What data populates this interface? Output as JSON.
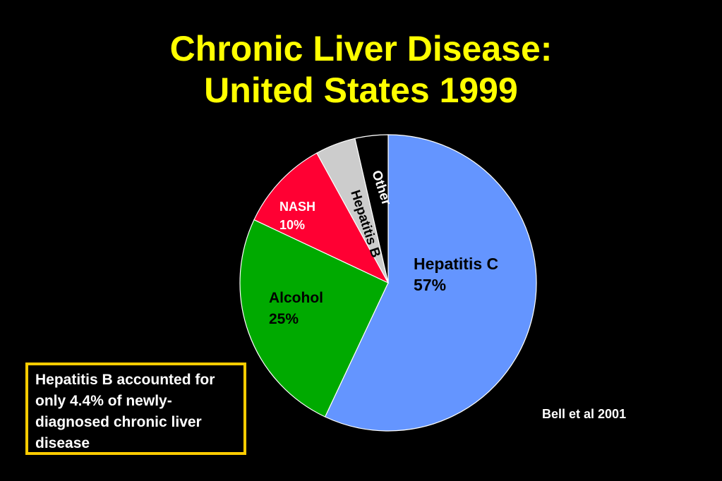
{
  "slide": {
    "title_line1": "Chronic Liver Disease:",
    "title_line2": "United States 1999",
    "note": "Hepatitis B accounted for only 4.4% of newly-diagnosed chronic liver disease",
    "citation": "Bell et al 2001"
  },
  "colors": {
    "title": "#ffff00",
    "note_border": "#ffcc00",
    "background": "#000000"
  },
  "chart_data": {
    "type": "pie",
    "title": "Chronic Liver Disease: United States 1999",
    "slices": [
      {
        "label": "Hepatitis C",
        "value": 57,
        "value_label": "57%",
        "color": "#6495ff",
        "text_color": "#000000"
      },
      {
        "label": "Alcohol",
        "value": 25,
        "value_label": "25%",
        "color": "#00aa00",
        "text_color": "#000000"
      },
      {
        "label": "NASH",
        "value": 10,
        "value_label": "10%",
        "color": "#ff0033",
        "text_color": "#ffffff"
      },
      {
        "label": "Hepatitis B",
        "value": 4.4,
        "value_label": "",
        "color": "#cccccc",
        "text_color": "#000000"
      },
      {
        "label": "Other",
        "value": 3.6,
        "value_label": "",
        "color": "#000000",
        "text_color": "#ffffff"
      }
    ],
    "start_angle_deg": 0,
    "direction": "clockwise"
  }
}
